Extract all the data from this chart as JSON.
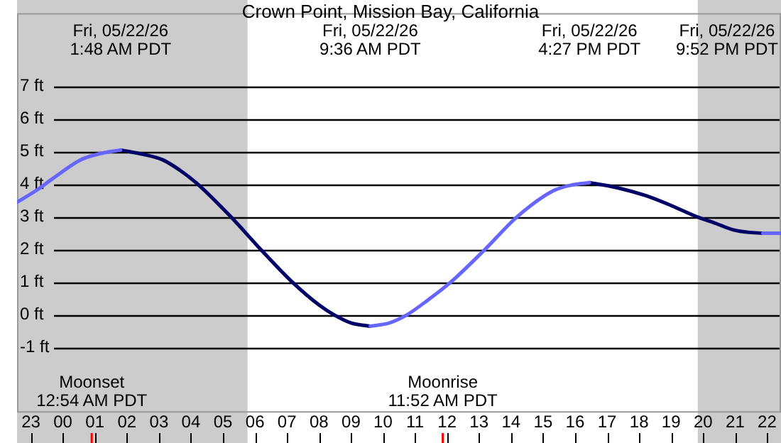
{
  "chart_data": {
    "type": "line",
    "title": "Crown Point, Mission Bay, California",
    "x": [
      "--05-21T22:34",
      "--05-21T23:09",
      "--05-21T23:43",
      "--05-22T00:33",
      "--05-22T01:12",
      "--05-22T01:48",
      "--05-22T02:30",
      "--05-22T03:07",
      "--05-22T03:42",
      "--05-22T04:13",
      "--05-22T05:15",
      "--05-22T06:11",
      "--05-22T07:10",
      "--05-22T08:00",
      "--05-22T08:28",
      "--05-22T09:00",
      "--05-22T09:36",
      "--05-22T10:12",
      "--05-22T10:45",
      "--05-22T11:24",
      "--05-22T12:07",
      "--05-22T13:11",
      "--05-22T14:11",
      "--05-22T15:19",
      "--05-22T15:54",
      "--05-22T16:27",
      "--05-22T17:18",
      "--05-22T18:13",
      "--05-22T19:00",
      "--05-22T19:49",
      "--05-22T20:24",
      "--05-22T20:57",
      "--05-22T21:24",
      "--05-22T21:52",
      "--05-22T22:26"
    ],
    "series": [
      {
        "color": "#6666ff",
        "values": [
          3.45,
          3.8,
          4.2,
          4.75,
          4.95,
          5.05,
          null,
          null,
          null,
          null,
          null,
          null,
          null,
          null,
          null,
          null,
          -0.35,
          -0.25,
          0.0,
          0.45,
          1.0,
          2.0,
          3.0,
          3.8,
          3.98,
          4.05,
          null,
          null,
          null,
          null,
          null,
          null,
          null,
          2.5,
          2.5
        ]
      },
      {
        "color": "#000066",
        "values": [
          null,
          null,
          null,
          null,
          null,
          5.05,
          4.92,
          4.75,
          4.4,
          4.0,
          3.0,
          2.0,
          1.0,
          0.3,
          0.0,
          -0.25,
          -0.35,
          null,
          null,
          null,
          null,
          null,
          null,
          null,
          null,
          4.05,
          3.9,
          3.65,
          3.35,
          3.0,
          2.8,
          2.6,
          2.53,
          2.5,
          null
        ]
      }
    ],
    "xlim": [
      "--05-21T22:34",
      "--05-22T22:26"
    ],
    "xticks": [
      {
        "value": "--05-21T23:00",
        "label": "23"
      },
      {
        "value": "--05-22T00:00",
        "label": "00"
      },
      {
        "value": "--05-22T01:00",
        "label": "01"
      },
      {
        "value": "--05-22T02:00",
        "label": "02"
      },
      {
        "value": "--05-22T03:00",
        "label": "03"
      },
      {
        "value": "--05-22T04:00",
        "label": "04"
      },
      {
        "value": "--05-22T05:00",
        "label": "05"
      },
      {
        "value": "--05-22T06:00",
        "label": "06"
      },
      {
        "value": "--05-22T07:00",
        "label": "07"
      },
      {
        "value": "--05-22T08:00",
        "label": "08"
      },
      {
        "value": "--05-22T09:00",
        "label": "09"
      },
      {
        "value": "--05-22T10:00",
        "label": "10"
      },
      {
        "value": "--05-22T11:00",
        "label": "11"
      },
      {
        "value": "--05-22T12:00",
        "label": "12"
      },
      {
        "value": "--05-22T13:00",
        "label": "13"
      },
      {
        "value": "--05-22T14:00",
        "label": "14"
      },
      {
        "value": "--05-22T15:00",
        "label": "15"
      },
      {
        "value": "--05-22T16:00",
        "label": "16"
      },
      {
        "value": "--05-22T17:00",
        "label": "17"
      },
      {
        "value": "--05-22T18:00",
        "label": "18"
      },
      {
        "value": "--05-22T19:00",
        "label": "19"
      },
      {
        "value": "--05-22T20:00",
        "label": "20"
      },
      {
        "value": "--05-22T21:00",
        "label": "21"
      },
      {
        "value": "--05-22T22:00",
        "label": "22"
      }
    ],
    "ylim": [
      -3,
      9.25
    ],
    "yticks": [
      {
        "value": -1,
        "label": "-1 ft"
      },
      {
        "value": 0,
        "label": "0 ft"
      },
      {
        "value": 1,
        "label": "1 ft"
      },
      {
        "value": 2,
        "label": "2 ft"
      },
      {
        "value": 3,
        "label": "3 ft"
      },
      {
        "value": 4,
        "label": "4 ft"
      },
      {
        "value": 5,
        "label": "5 ft"
      },
      {
        "value": 6,
        "label": "6 ft"
      },
      {
        "value": 7,
        "label": "7 ft"
      }
    ],
    "grid": "y",
    "marker": "none",
    "line_style": "solid",
    "bands": [
      {
        "axis": "x",
        "from": "--05-21T22:34",
        "to": "--05-22T05:46",
        "color": "#cccccc"
      },
      {
        "axis": "x",
        "from": "--05-22T19:50",
        "to": "--05-22T22:26",
        "color": "#cccccc"
      }
    ],
    "ref_lines": [
      {
        "axis": "x",
        "value": "--05-22T00:54",
        "label": "Moonset\n12:54 AM PDT",
        "color": "#ff0000"
      },
      {
        "axis": "x",
        "value": "--05-22T11:52",
        "label": "Moonrise\n11:52 AM PDT",
        "color": "#ff0000"
      }
    ],
    "annotations": [
      "Fri, 05/22/26\n1:48 AM PDT",
      "Fri, 05/22/26\n9:36 AM PDT",
      "Fri, 05/22/26\n4:27 PM PDT",
      "Fri, 05/22/26\n9:52 PM PDT"
    ]
  }
}
